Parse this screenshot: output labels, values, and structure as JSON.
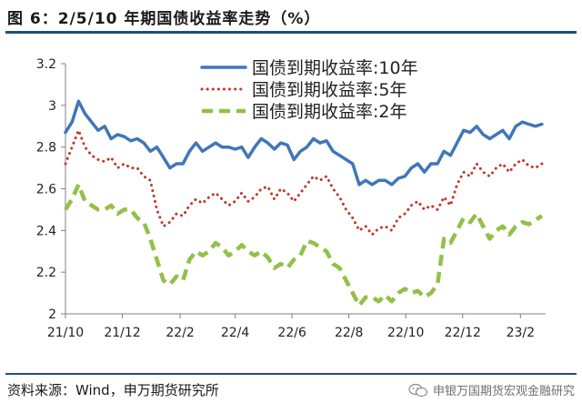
{
  "header": {
    "title": "图 6：2/5/10 年期国债收益率走势（%）"
  },
  "footer": {
    "source": "资料来源：Wind，申万期货研究所",
    "watermark": "申银万国期货宏观金融研究",
    "watermark_icon": "wechat-icon"
  },
  "colors": {
    "rule": "#1f4e79",
    "s10": "#3f77b8",
    "s5": "#c0392b",
    "s2": "#93c047"
  },
  "chart_data": {
    "type": "line",
    "title": "",
    "xlabel": "",
    "ylabel": "",
    "ylim": [
      2,
      3.2
    ],
    "yticks": [
      2,
      2.2,
      2.4,
      2.6,
      2.8,
      3,
      3.2
    ],
    "ytick_labels": [
      "2",
      "2.2",
      "2.4",
      "2.6",
      "2.8",
      "3",
      "3.2"
    ],
    "xlim": [
      "2021-10-01",
      "2023-02-28"
    ],
    "xticks": [
      {
        "date": "2021-10-01",
        "label": "21/10"
      },
      {
        "date": "2021-12-01",
        "label": "21/12"
      },
      {
        "date": "2022-02-01",
        "label": "22/2"
      },
      {
        "date": "2022-04-01",
        "label": "22/4"
      },
      {
        "date": "2022-06-01",
        "label": "22/6"
      },
      {
        "date": "2022-08-01",
        "label": "22/8"
      },
      {
        "date": "2022-10-01",
        "label": "22/10"
      },
      {
        "date": "2022-12-01",
        "label": "22/12"
      },
      {
        "date": "2023-02-01",
        "label": "23/2"
      }
    ],
    "legend": {
      "position": "top-right"
    },
    "grid": false,
    "x": [
      "2021-10-01",
      "2021-10-08",
      "2021-10-15",
      "2021-10-22",
      "2021-10-29",
      "2021-11-05",
      "2021-11-12",
      "2021-11-19",
      "2021-11-26",
      "2021-12-03",
      "2021-12-10",
      "2021-12-17",
      "2021-12-24",
      "2021-12-31",
      "2022-01-07",
      "2022-01-14",
      "2022-01-21",
      "2022-01-28",
      "2022-02-04",
      "2022-02-11",
      "2022-02-18",
      "2022-02-25",
      "2022-03-04",
      "2022-03-11",
      "2022-03-18",
      "2022-03-25",
      "2022-04-01",
      "2022-04-08",
      "2022-04-15",
      "2022-04-22",
      "2022-04-29",
      "2022-05-06",
      "2022-05-13",
      "2022-05-20",
      "2022-05-27",
      "2022-06-03",
      "2022-06-10",
      "2022-06-17",
      "2022-06-24",
      "2022-07-01",
      "2022-07-08",
      "2022-07-15",
      "2022-07-22",
      "2022-07-29",
      "2022-08-05",
      "2022-08-12",
      "2022-08-19",
      "2022-08-26",
      "2022-09-02",
      "2022-09-09",
      "2022-09-16",
      "2022-09-23",
      "2022-09-30",
      "2022-10-07",
      "2022-10-14",
      "2022-10-21",
      "2022-10-28",
      "2022-11-04",
      "2022-11-11",
      "2022-11-18",
      "2022-11-25",
      "2022-12-02",
      "2022-12-09",
      "2022-12-16",
      "2022-12-23",
      "2022-12-30",
      "2023-01-06",
      "2023-01-13",
      "2023-01-20",
      "2023-01-27",
      "2023-02-03",
      "2023-02-10",
      "2023-02-17",
      "2023-02-24"
    ],
    "series": [
      {
        "name": "国债到期收益率:10年",
        "style": "solid",
        "values": [
          2.87,
          2.92,
          3.02,
          2.96,
          2.92,
          2.88,
          2.9,
          2.84,
          2.86,
          2.85,
          2.83,
          2.84,
          2.82,
          2.78,
          2.8,
          2.75,
          2.7,
          2.72,
          2.72,
          2.78,
          2.82,
          2.78,
          2.8,
          2.82,
          2.8,
          2.8,
          2.79,
          2.8,
          2.75,
          2.8,
          2.84,
          2.82,
          2.79,
          2.82,
          2.81,
          2.74,
          2.78,
          2.8,
          2.84,
          2.82,
          2.83,
          2.78,
          2.76,
          2.74,
          2.72,
          2.62,
          2.64,
          2.62,
          2.64,
          2.64,
          2.62,
          2.65,
          2.66,
          2.7,
          2.72,
          2.68,
          2.72,
          2.72,
          2.78,
          2.76,
          2.82,
          2.88,
          2.87,
          2.9,
          2.86,
          2.84,
          2.86,
          2.88,
          2.84,
          2.9,
          2.92,
          2.91,
          2.9,
          2.91
        ]
      },
      {
        "name": "国债到期收益率:5年",
        "style": "dotted",
        "values": [
          2.72,
          2.8,
          2.88,
          2.8,
          2.76,
          2.74,
          2.73,
          2.75,
          2.7,
          2.72,
          2.7,
          2.7,
          2.66,
          2.64,
          2.5,
          2.42,
          2.44,
          2.48,
          2.47,
          2.52,
          2.55,
          2.53,
          2.56,
          2.58,
          2.55,
          2.52,
          2.54,
          2.58,
          2.54,
          2.56,
          2.6,
          2.61,
          2.55,
          2.6,
          2.58,
          2.54,
          2.58,
          2.62,
          2.66,
          2.64,
          2.66,
          2.6,
          2.56,
          2.5,
          2.46,
          2.4,
          2.42,
          2.38,
          2.41,
          2.42,
          2.4,
          2.46,
          2.48,
          2.52,
          2.54,
          2.5,
          2.52,
          2.5,
          2.56,
          2.52,
          2.62,
          2.68,
          2.66,
          2.72,
          2.68,
          2.66,
          2.7,
          2.72,
          2.68,
          2.72,
          2.74,
          2.71,
          2.7,
          2.72
        ]
      },
      {
        "name": "国债到期收益率:2年",
        "style": "dashed",
        "values": [
          2.5,
          2.55,
          2.62,
          2.54,
          2.52,
          2.5,
          2.5,
          2.52,
          2.48,
          2.5,
          2.5,
          2.46,
          2.44,
          2.36,
          2.26,
          2.16,
          2.14,
          2.18,
          2.16,
          2.26,
          2.3,
          2.28,
          2.3,
          2.34,
          2.32,
          2.28,
          2.3,
          2.33,
          2.3,
          2.28,
          2.3,
          2.27,
          2.22,
          2.24,
          2.22,
          2.26,
          2.28,
          2.35,
          2.34,
          2.32,
          2.3,
          2.24,
          2.22,
          2.16,
          2.1,
          2.04,
          2.08,
          2.08,
          2.06,
          2.09,
          2.06,
          2.1,
          2.12,
          2.1,
          2.11,
          2.08,
          2.1,
          2.14,
          2.36,
          2.34,
          2.4,
          2.46,
          2.44,
          2.48,
          2.42,
          2.36,
          2.4,
          2.42,
          2.38,
          2.42,
          2.44,
          2.43,
          2.45,
          2.47
        ]
      }
    ]
  }
}
